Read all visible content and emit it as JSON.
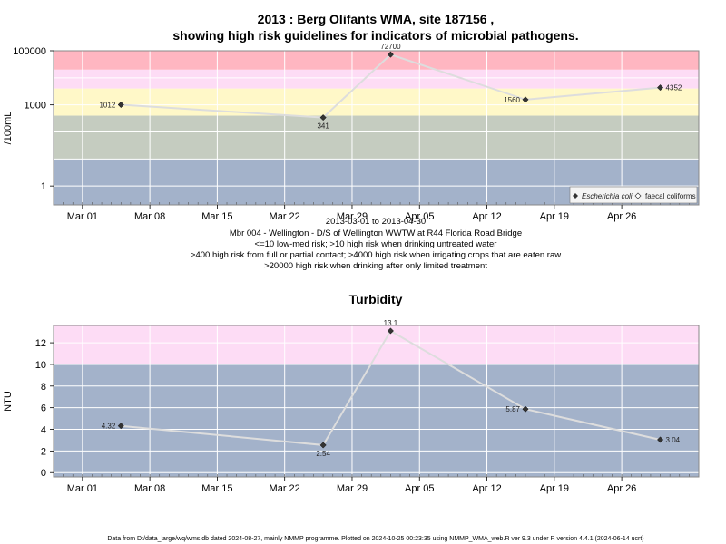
{
  "title_line1": "2013 : Berg Olifants WMA, site 187156 ,",
  "title_line2": "showing high risk guidelines for indicators of microbial pathogens.",
  "info_lines": [
    "2013-03-01 to 2013-04-30",
    "Mbr 004 - Wellington - D/S of Wellington WWTW at R44 Florida Road Bridge",
    "<=10 low-med risk; >10 high risk when drinking untreated water",
    ">400 high risk from full or partial contact; >4000 high risk when irrigating crops that are eaten raw",
    ">20000 high risk when drinking after only limited treatment"
  ],
  "footer": "Data from D:/data_large/wq/wms.db dated 2024-08-27, mainly NMMP programme. Plotted on 2024-10-25 00:23:35 using NMMP_WMA_web.R ver 9.3 under R version 4.4.1 (2024-06-14 ucrt)",
  "colors": {
    "band_red": "#ffb6c1",
    "band_pink": "#fddcf5",
    "band_yellow": "#fff8c8",
    "band_greygreen": "#c5ccc0",
    "band_blue": "#a3b2ca",
    "line": "#dddddd",
    "point": "#333333"
  },
  "chart_data": [
    {
      "type": "line",
      "title": "",
      "ylabel": "/100mL",
      "xlabel": "",
      "y_scale": "log",
      "ylim": [
        0.2,
        100000
      ],
      "xlim": [
        "2013-02-26",
        "2013-05-04"
      ],
      "x_ticks": [
        "2013-03-01",
        "2013-03-08",
        "2013-03-15",
        "2013-03-22",
        "2013-03-29",
        "2013-04-05",
        "2013-04-12",
        "2013-04-19",
        "2013-04-26"
      ],
      "x_tick_labels": [
        "Mar 01",
        "Mar 08",
        "Mar 15",
        "Mar 22",
        "Mar 29",
        "Apr 05",
        "Apr 12",
        "Apr 19",
        "Apr 26"
      ],
      "y_ticks": [
        1,
        1000,
        100000
      ],
      "y_tick_labels": [
        "1",
        "1000",
        "100000"
      ],
      "grid": true,
      "thresholds": [
        10,
        400,
        4000,
        20000
      ],
      "series": [
        {
          "name": "Escherichia coli",
          "x": [
            "2013-03-05",
            "2013-03-26",
            "2013-04-02",
            "2013-04-16",
            "2013-04-30"
          ],
          "y": [
            1012,
            341,
            72700,
            1560,
            4352
          ],
          "labels": [
            "1012",
            "341",
            "72700",
            "1560",
            "4352"
          ]
        }
      ],
      "legend": {
        "position": "bottom-right",
        "entries": [
          "Escherichia coli",
          "faecal coliforms"
        ]
      }
    },
    {
      "type": "line",
      "title": "Turbidity",
      "ylabel": "NTU",
      "xlabel": "",
      "y_scale": "linear",
      "ylim": [
        -0.4,
        13.6
      ],
      "xlim": [
        "2013-02-26",
        "2013-05-04"
      ],
      "x_ticks": [
        "2013-03-01",
        "2013-03-08",
        "2013-03-15",
        "2013-03-22",
        "2013-03-29",
        "2013-04-05",
        "2013-04-12",
        "2013-04-19",
        "2013-04-26"
      ],
      "x_tick_labels": [
        "Mar 01",
        "Mar 08",
        "Mar 15",
        "Mar 22",
        "Mar 29",
        "Apr 05",
        "Apr 12",
        "Apr 19",
        "Apr 26"
      ],
      "y_ticks": [
        0,
        2,
        4,
        6,
        8,
        10,
        12
      ],
      "y_tick_labels": [
        "0",
        "2",
        "4",
        "6",
        "8",
        "10",
        "12"
      ],
      "grid": true,
      "thresholds": [
        10
      ],
      "series": [
        {
          "x": [
            "2013-03-05",
            "2013-03-26",
            "2013-04-02",
            "2013-04-16",
            "2013-04-30"
          ],
          "y": [
            4.32,
            2.54,
            13.1,
            5.87,
            3.04
          ],
          "labels": [
            "4.32",
            "2.54",
            "13.1",
            "5.87",
            "3.04"
          ]
        }
      ]
    }
  ]
}
